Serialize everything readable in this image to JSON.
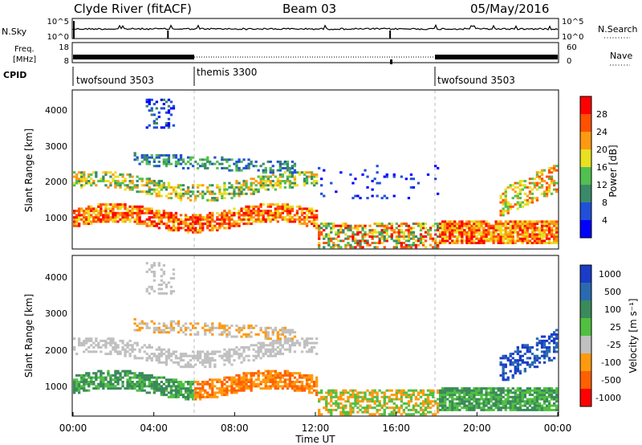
{
  "header": {
    "station": "Clyde River (fitACF)",
    "beam": "Beam 03",
    "date": "05/May/2016"
  },
  "colors": {
    "power_scale": [
      "#0000ff",
      "#2050d8",
      "#3a8a6a",
      "#50c050",
      "#e8e020",
      "#ff9a10",
      "#ff5000",
      "#ff0000"
    ],
    "velocity_scale": [
      "#1a3cc8",
      "#2a6ab0",
      "#3a8a5a",
      "#50c040",
      "#c0c0c0",
      "#ff9a10",
      "#ff6000",
      "#ff0000"
    ]
  },
  "chart_data": [
    {
      "type": "line",
      "name": "nsky-nsearch",
      "left_label": "N.Sky",
      "right_label": "N.Search",
      "left_ticks": [
        "10^5",
        "10^0"
      ],
      "right_ticks": [
        "10^5",
        "10^0"
      ]
    },
    {
      "type": "line",
      "name": "freq-nave",
      "left_label_top": "Freq.",
      "left_label_bottom": "[MHz]",
      "right_label": "Nave",
      "left_ticks": [
        "18",
        "8"
      ],
      "right_ticks": [
        "60",
        "0"
      ]
    },
    {
      "type": "table",
      "name": "cpid",
      "label": "CPID",
      "segments": [
        {
          "start": 0,
          "end": 6,
          "label": "twofsound 3503"
        },
        {
          "start": 6,
          "end": 18,
          "label": "themis 3300"
        },
        {
          "start": 18,
          "end": 24,
          "label": "twofsound 3503"
        }
      ]
    },
    {
      "type": "heatmap",
      "name": "power",
      "ylabel": "Slant Range [km]",
      "yticks": [
        "1000",
        "2000",
        "3000",
        "4000"
      ],
      "colorbar_label": "Power [dB]",
      "colorbar_ticks": [
        "4",
        "8",
        "12",
        "16",
        "20",
        "24",
        "28"
      ],
      "ylim": [
        180,
        4600
      ]
    },
    {
      "type": "heatmap",
      "name": "velocity",
      "ylabel": "Slant Range [km]",
      "yticks": [
        "1000",
        "2000",
        "3000",
        "4000"
      ],
      "colorbar_label": "Velocity [m s⁻¹]",
      "colorbar_ticks": [
        "1000",
        "500",
        "100",
        "25",
        "-25",
        "-100",
        "-500",
        "-1000"
      ],
      "ylim": [
        180,
        4600
      ]
    }
  ],
  "xaxis": {
    "label": "Time UT",
    "ticks": [
      "00:00",
      "04:00",
      "08:00",
      "12:00",
      "16:00",
      "20:00",
      "00:00"
    ]
  }
}
